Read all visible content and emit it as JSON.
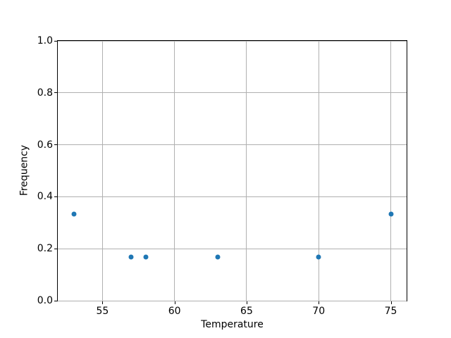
{
  "figure": {
    "background": "#ffffff"
  },
  "chart_data": {
    "type": "scatter",
    "title": "",
    "xlabel": "Temperature",
    "ylabel": "Frequency",
    "x": [
      53,
      57,
      58,
      63,
      70,
      75
    ],
    "y": [
      0.333,
      0.167,
      0.167,
      0.167,
      0.167,
      0.333
    ],
    "xlim": [
      51.9,
      76.1
    ],
    "ylim": [
      0.0,
      1.0
    ],
    "xticks": [
      55,
      60,
      65,
      70,
      75
    ],
    "xtick_labels": [
      "55",
      "60",
      "65",
      "70",
      "75"
    ],
    "yticks": [
      0.0,
      0.2,
      0.4,
      0.6,
      0.8,
      1.0
    ],
    "ytick_labels": [
      "0.0",
      "0.2",
      "0.4",
      "0.6",
      "0.8",
      "1.0"
    ],
    "grid": true,
    "legend_position": "none",
    "marker_color": "#1f77b4",
    "grid_color": "#b0b0b0",
    "spine_color": "#000000",
    "text_color": "#000000"
  }
}
